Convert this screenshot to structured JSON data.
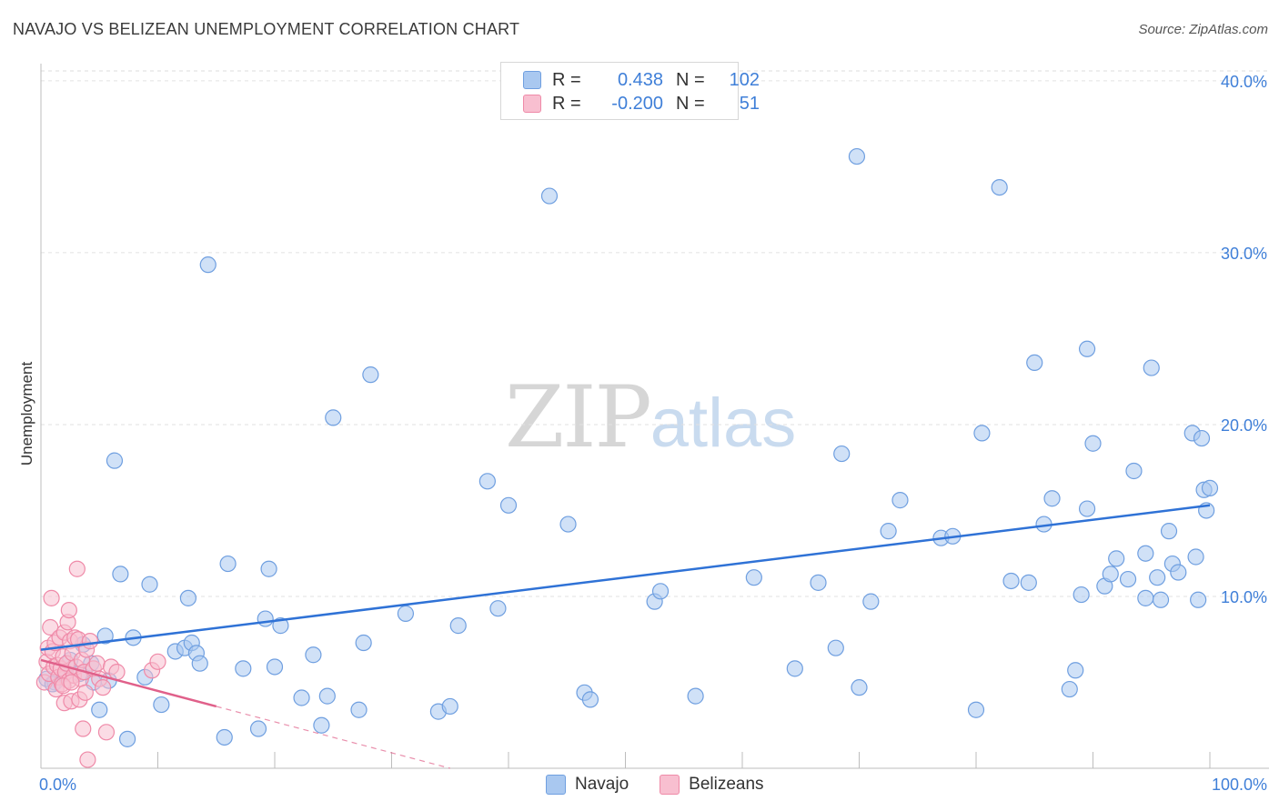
{
  "title": "NAVAJO VS BELIZEAN UNEMPLOYMENT CORRELATION CHART",
  "source": "Source: ZipAtlas.com",
  "watermark": {
    "zip": "ZIP",
    "atlas": "atlas"
  },
  "legend": {
    "rows": [
      {
        "r_label": "R =",
        "r_value": "0.438",
        "n_label": "N =",
        "n_value": "102",
        "color": "#a9c8f0",
        "border": "#6f9fe0"
      },
      {
        "r_label": "R =",
        "r_value": "-0.200",
        "n_label": "N =",
        "n_value": "51",
        "color": "#f8bfd0",
        "border": "#ef8aa8"
      }
    ]
  },
  "bottom_legend": [
    {
      "label": "Navajo",
      "color": "#a9c8f0",
      "border": "#6f9fe0"
    },
    {
      "label": "Belizeans",
      "color": "#f8bfd0",
      "border": "#ef8aa8"
    }
  ],
  "chart_data": {
    "type": "scatter",
    "ylabel": "Unemployment",
    "xlabel": "",
    "xlim": [
      0,
      100
    ],
    "ylim": [
      0,
      41
    ],
    "x_tick_labels": [
      "0.0%",
      "100.0%"
    ],
    "y_ticks": [
      10,
      20,
      30,
      40
    ],
    "y_tick_labels": [
      "10.0%",
      "20.0%",
      "30.0%",
      "40.0%"
    ],
    "series": [
      {
        "name": "Navajo",
        "color": "#6f9fe0",
        "fill": "rgba(169,200,240,0.55)",
        "trend": {
          "x": [
            0,
            100
          ],
          "y": [
            6.9,
            15.3
          ],
          "color": "#2f72d6"
        },
        "points": [
          [
            0.5,
            5.2
          ],
          [
            1.2,
            5.0
          ],
          [
            2.0,
            5.5
          ],
          [
            2.5,
            6.3
          ],
          [
            3.3,
            5.5
          ],
          [
            3.6,
            7.2
          ],
          [
            4.3,
            6.1
          ],
          [
            5.0,
            3.4
          ],
          [
            5.5,
            7.7
          ],
          [
            5.8,
            5.1
          ],
          [
            6.3,
            17.9
          ],
          [
            6.8,
            11.3
          ],
          [
            7.4,
            1.7
          ],
          [
            7.9,
            7.6
          ],
          [
            8.9,
            5.3
          ],
          [
            9.3,
            10.7
          ],
          [
            10.3,
            3.7
          ],
          [
            11.5,
            6.8
          ],
          [
            12.3,
            7.0
          ],
          [
            12.6,
            9.9
          ],
          [
            12.9,
            7.3
          ],
          [
            13.3,
            6.7
          ],
          [
            13.6,
            6.1
          ],
          [
            14.3,
            29.3
          ],
          [
            15.7,
            1.8
          ],
          [
            16.0,
            11.9
          ],
          [
            17.3,
            5.8
          ],
          [
            18.6,
            2.3
          ],
          [
            19.2,
            8.7
          ],
          [
            19.5,
            11.6
          ],
          [
            20.0,
            5.9
          ],
          [
            20.5,
            8.3
          ],
          [
            22.3,
            4.1
          ],
          [
            23.3,
            6.6
          ],
          [
            24.0,
            2.5
          ],
          [
            24.5,
            4.2
          ],
          [
            25.0,
            20.4
          ],
          [
            27.2,
            3.4
          ],
          [
            27.6,
            7.3
          ],
          [
            28.2,
            22.9
          ],
          [
            31.2,
            9.0
          ],
          [
            34.0,
            3.3
          ],
          [
            35.0,
            3.6
          ],
          [
            35.7,
            8.3
          ],
          [
            38.2,
            16.7
          ],
          [
            39.1,
            9.3
          ],
          [
            40.0,
            15.3
          ],
          [
            43.5,
            33.3
          ],
          [
            45.1,
            14.2
          ],
          [
            46.5,
            4.4
          ],
          [
            47.0,
            4.0
          ],
          [
            52.5,
            9.7
          ],
          [
            53.0,
            10.3
          ],
          [
            56.0,
            4.2
          ],
          [
            61.0,
            11.1
          ],
          [
            64.5,
            5.8
          ],
          [
            66.5,
            10.8
          ],
          [
            68.0,
            7.0
          ],
          [
            68.5,
            18.3
          ],
          [
            69.8,
            35.6
          ],
          [
            70.0,
            4.7
          ],
          [
            71.0,
            9.7
          ],
          [
            72.5,
            13.8
          ],
          [
            73.5,
            15.6
          ],
          [
            77.0,
            13.4
          ],
          [
            78.0,
            13.5
          ],
          [
            80.0,
            3.4
          ],
          [
            80.5,
            19.5
          ],
          [
            82.0,
            33.8
          ],
          [
            83.0,
            10.9
          ],
          [
            84.5,
            10.8
          ],
          [
            85.0,
            23.6
          ],
          [
            85.8,
            14.2
          ],
          [
            86.5,
            15.7
          ],
          [
            88.0,
            4.6
          ],
          [
            88.5,
            5.7
          ],
          [
            89.0,
            10.1
          ],
          [
            89.5,
            15.1
          ],
          [
            89.5,
            24.4
          ],
          [
            90.0,
            18.9
          ],
          [
            91.0,
            10.6
          ],
          [
            91.5,
            11.3
          ],
          [
            92.0,
            12.2
          ],
          [
            93.0,
            11.0
          ],
          [
            93.5,
            17.3
          ],
          [
            94.5,
            12.5
          ],
          [
            94.5,
            9.9
          ],
          [
            95.0,
            23.3
          ],
          [
            95.5,
            11.1
          ],
          [
            95.8,
            9.8
          ],
          [
            96.5,
            13.8
          ],
          [
            96.8,
            11.9
          ],
          [
            97.3,
            11.4
          ],
          [
            98.5,
            19.5
          ],
          [
            98.8,
            12.3
          ],
          [
            99.0,
            9.8
          ],
          [
            99.3,
            19.2
          ],
          [
            99.5,
            16.2
          ],
          [
            99.7,
            15.0
          ],
          [
            100.0,
            16.3
          ],
          [
            1.0,
            4.9
          ],
          [
            4.5,
            5.0
          ]
        ]
      },
      {
        "name": "Belizeans",
        "color": "#ef8aa8",
        "fill": "rgba(248,191,208,0.55)",
        "trend": {
          "x": [
            0,
            15
          ],
          "y": [
            6.3,
            3.6
          ],
          "color": "#e0608a"
        },
        "trend_extension": {
          "x": [
            15,
            35
          ],
          "y": [
            3.6,
            0.0
          ]
        },
        "points": [
          [
            0.3,
            5.0
          ],
          [
            0.5,
            6.2
          ],
          [
            0.6,
            7.0
          ],
          [
            0.7,
            5.5
          ],
          [
            0.8,
            8.2
          ],
          [
            0.9,
            9.9
          ],
          [
            1.0,
            6.8
          ],
          [
            1.1,
            5.9
          ],
          [
            1.2,
            7.3
          ],
          [
            1.3,
            4.6
          ],
          [
            1.4,
            6.0
          ],
          [
            1.5,
            5.3
          ],
          [
            1.6,
            7.6
          ],
          [
            1.7,
            5.8
          ],
          [
            1.8,
            4.9
          ],
          [
            1.9,
            6.5
          ],
          [
            2.0,
            7.9
          ],
          [
            2.0,
            3.8
          ],
          [
            2.1,
            5.6
          ],
          [
            2.2,
            6.1
          ],
          [
            2.3,
            8.5
          ],
          [
            2.4,
            9.2
          ],
          [
            2.4,
            5.1
          ],
          [
            2.5,
            7.4
          ],
          [
            2.6,
            3.9
          ],
          [
            2.7,
            6.7
          ],
          [
            2.8,
            5.4
          ],
          [
            2.9,
            7.6
          ],
          [
            3.0,
            5.9
          ],
          [
            3.1,
            11.6
          ],
          [
            3.2,
            7.5
          ],
          [
            3.3,
            4.0
          ],
          [
            3.4,
            5.2
          ],
          [
            3.5,
            6.3
          ],
          [
            3.6,
            2.3
          ],
          [
            3.7,
            5.6
          ],
          [
            3.8,
            4.4
          ],
          [
            3.9,
            6.9
          ],
          [
            4.0,
            0.5
          ],
          [
            4.2,
            7.4
          ],
          [
            4.5,
            5.8
          ],
          [
            4.8,
            6.1
          ],
          [
            5.0,
            5.2
          ],
          [
            5.3,
            4.7
          ],
          [
            5.6,
            2.1
          ],
          [
            6.0,
            5.9
          ],
          [
            6.5,
            5.6
          ],
          [
            9.5,
            5.7
          ],
          [
            10.0,
            6.2
          ],
          [
            1.9,
            4.8
          ],
          [
            2.6,
            5.0
          ]
        ]
      }
    ]
  }
}
